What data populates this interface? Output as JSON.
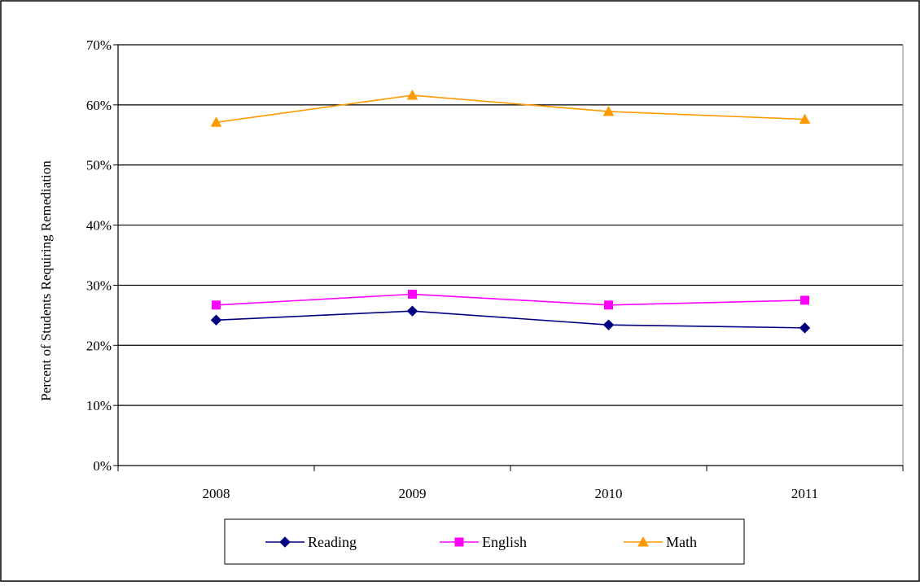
{
  "chart_data": {
    "type": "line",
    "title": "",
    "xlabel": "",
    "ylabel": "Percent of Students Requiring Remediation",
    "categories": [
      "2008",
      "2009",
      "2010",
      "2011"
    ],
    "y_ticks": [
      "0%",
      "10%",
      "20%",
      "30%",
      "40%",
      "50%",
      "60%",
      "70%"
    ],
    "ylim": [
      0,
      70
    ],
    "y_tick_step": 10,
    "grid": true,
    "legend_position": "bottom",
    "series": [
      {
        "name": "Reading",
        "values": [
          24.2,
          25.7,
          23.4,
          22.9
        ],
        "color": "#000080",
        "marker": "diamond"
      },
      {
        "name": "English",
        "values": [
          26.7,
          28.5,
          26.7,
          27.5
        ],
        "color": "#FF00FF",
        "marker": "square"
      },
      {
        "name": "Math",
        "values": [
          57.1,
          61.6,
          58.9,
          57.6
        ],
        "color": "#FF9900",
        "marker": "triangle"
      }
    ]
  }
}
